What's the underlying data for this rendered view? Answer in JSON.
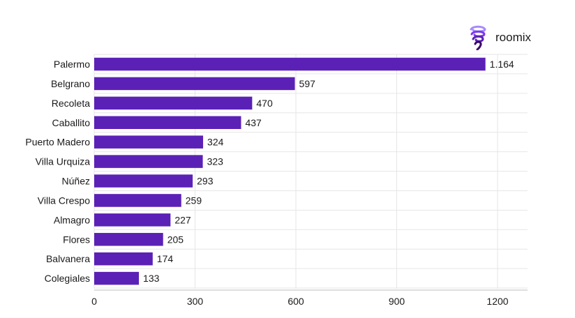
{
  "brand": {
    "name": "roomix",
    "color": "#5b21b6"
  },
  "chart_data": {
    "type": "bar",
    "orientation": "horizontal",
    "categories": [
      "Palermo",
      "Belgrano",
      "Recoleta",
      "Caballito",
      "Puerto Madero",
      "Villa Urquiza",
      "Núñez",
      "Villa Crespo",
      "Almagro",
      "Flores",
      "Balvanera",
      "Colegiales"
    ],
    "values": [
      1164,
      597,
      470,
      437,
      324,
      323,
      293,
      259,
      227,
      205,
      174,
      133
    ],
    "value_labels": [
      "1.164",
      "597",
      "470",
      "437",
      "324",
      "323",
      "293",
      "259",
      "227",
      "205",
      "174",
      "133"
    ],
    "xticks": [
      "0",
      "300",
      "600",
      "900",
      "1200"
    ],
    "xtick_values": [
      0,
      300,
      600,
      900,
      1200
    ],
    "xlim": [
      0,
      1290
    ],
    "title": "",
    "xlabel": "",
    "ylabel": "",
    "grid": "vertical",
    "legend": "none",
    "bar_color": "#5b21b6"
  }
}
